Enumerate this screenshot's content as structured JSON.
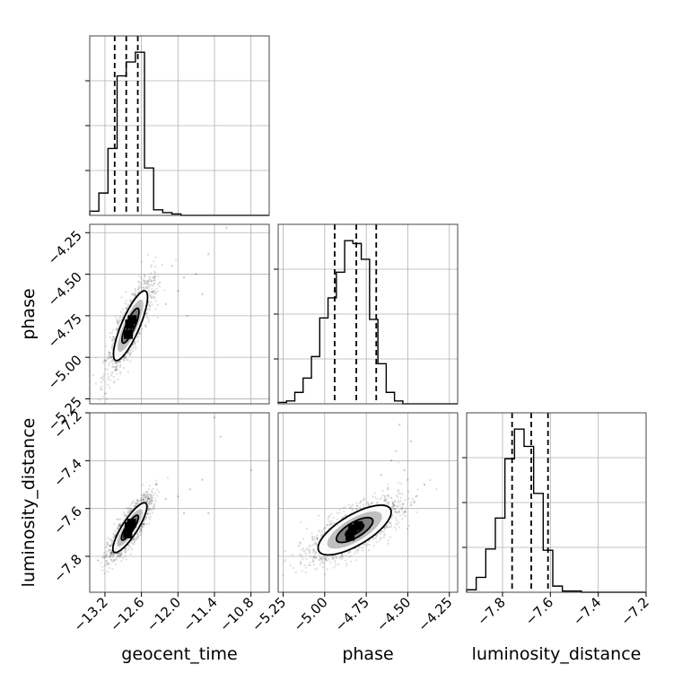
{
  "chart_data": {
    "type": "corner",
    "parameters": [
      "geocent_time",
      "phase",
      "luminosity_distance"
    ],
    "axes": {
      "geocent_time": {
        "range": [
          -13.45,
          -10.5
        ],
        "ticks": [
          -13.2,
          -12.6,
          -12.0,
          -11.4,
          -10.8
        ],
        "tick_labels": [
          "−13.2",
          "−12.6",
          "−12.0",
          "−11.4",
          "−10.8"
        ]
      },
      "phase": {
        "range": [
          -5.28,
          -4.2
        ],
        "ticks": [
          -5.25,
          -5.0,
          -4.75,
          -4.5,
          -4.25
        ],
        "tick_labels": [
          "−5.25",
          "−5.00",
          "−4.75",
          "−4.50",
          "−4.25"
        ]
      },
      "luminosity_distance": {
        "range": [
          -7.95,
          -7.2
        ],
        "ticks": [
          -7.8,
          -7.6,
          -7.4,
          -7.2
        ],
        "tick_labels": [
          "−7.8",
          "−7.6",
          "−7.4",
          "−7.2"
        ]
      }
    },
    "grid": true,
    "histograms": [
      {
        "parameter": "geocent_time",
        "bin_edges": [
          -13.45,
          -13.3,
          -13.15,
          -13.0,
          -12.85,
          -12.7,
          -12.55,
          -12.4,
          -12.25,
          -12.1,
          -11.95
        ],
        "counts": [
          3,
          16,
          48,
          100,
          110,
          117,
          34,
          4,
          2,
          1
        ],
        "quantiles": [
          -13.04,
          -12.85,
          -12.66
        ]
      },
      {
        "parameter": "phase",
        "bin_edges": [
          -5.28,
          -5.23,
          -5.18,
          -5.13,
          -5.08,
          -5.03,
          -4.98,
          -4.93,
          -4.88,
          -4.83,
          -4.78,
          -4.73,
          -4.68,
          -4.63,
          -4.58,
          -4.53
        ],
        "counts": [
          1,
          2,
          8,
          18,
          33,
          60,
          74,
          92,
          114,
          112,
          101,
          59,
          28,
          8,
          2
        ],
        "quantiles": [
          -4.94,
          -4.81,
          -4.69
        ]
      },
      {
        "parameter": "luminosity_distance",
        "bin_edges": [
          -7.95,
          -7.91,
          -7.87,
          -7.83,
          -7.79,
          -7.75,
          -7.71,
          -7.67,
          -7.63,
          -7.59,
          -7.55,
          -7.51,
          -7.47
        ],
        "counts": [
          2,
          12,
          35,
          60,
          108,
          132,
          118,
          80,
          34,
          5,
          1,
          1
        ],
        "quantiles": [
          -7.76,
          -7.68,
          -7.61
        ]
      }
    ],
    "density_panels": [
      {
        "x": "geocent_time",
        "y": "phase",
        "mean": [
          -12.78,
          -4.81
        ],
        "sd": [
          0.14,
          0.105
        ],
        "rho": 0.82,
        "outliers": [
          [
            -11.5,
            -4.38
          ],
          [
            -11.2,
            -4.22
          ],
          [
            -12.0,
            -4.6
          ],
          [
            -11.9,
            -4.52
          ],
          [
            -12.2,
            -4.68
          ],
          [
            -11.7,
            -4.5
          ],
          [
            -12.3,
            -4.55
          ],
          [
            -11.85,
            -4.75
          ],
          [
            -12.1,
            -4.45
          ],
          [
            -11.6,
            -4.62
          ]
        ]
      },
      {
        "x": "geocent_time",
        "y": "luminosity_distance",
        "mean": [
          -12.79,
          -7.68
        ],
        "sd": [
          0.14,
          0.052
        ],
        "rho": 0.85,
        "outliers": [
          [
            -11.4,
            -7.22
          ],
          [
            -11.3,
            -7.3
          ],
          [
            -10.8,
            -7.44
          ],
          [
            -11.8,
            -7.52
          ],
          [
            -12.0,
            -7.55
          ],
          [
            -11.6,
            -7.48
          ],
          [
            -12.2,
            -7.56
          ],
          [
            -11.5,
            -7.62
          ],
          [
            -12.35,
            -7.5
          ],
          [
            -11.9,
            -7.62
          ]
        ]
      },
      {
        "x": "phase",
        "y": "luminosity_distance",
        "mean": [
          -4.82,
          -7.69
        ],
        "sd": [
          0.11,
          0.052
        ],
        "rho": 0.72,
        "outliers": [
          [
            -4.55,
            -7.25
          ],
          [
            -4.48,
            -7.32
          ],
          [
            -4.6,
            -7.4
          ],
          [
            -4.5,
            -7.48
          ],
          [
            -4.45,
            -7.55
          ],
          [
            -4.52,
            -7.44
          ],
          [
            -4.62,
            -7.52
          ],
          [
            -4.4,
            -7.5
          ],
          [
            -4.57,
            -7.36
          ],
          [
            -4.66,
            -7.46
          ]
        ]
      }
    ],
    "contour_levels_sigma": [
      0.5,
      1.0,
      1.5,
      2.0
    ]
  }
}
